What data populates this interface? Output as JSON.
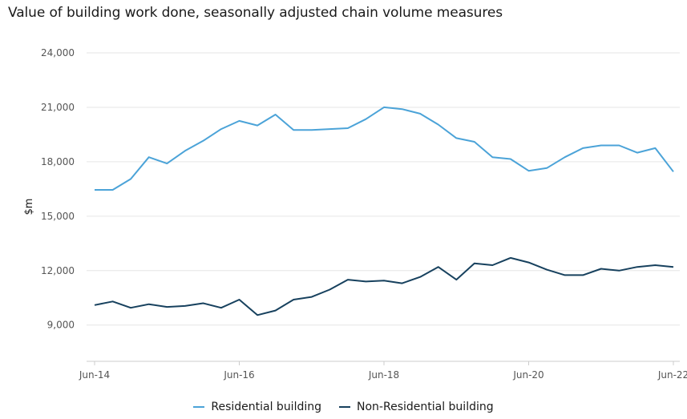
{
  "chart_data": {
    "type": "line",
    "title": "Value of building work done, seasonally adjusted chain volume measures",
    "ylabel": "$m",
    "xlabel": "",
    "ylim": [
      7000,
      24000
    ],
    "yticks": [
      9000,
      12000,
      15000,
      18000,
      21000,
      24000
    ],
    "ytick_labels": [
      "9,000",
      "12,000",
      "15,000",
      "18,000",
      "21,000",
      "24,000"
    ],
    "x": [
      "Jun-14",
      "Sep-14",
      "Dec-14",
      "Mar-15",
      "Jun-15",
      "Sep-15",
      "Dec-15",
      "Mar-16",
      "Jun-16",
      "Sep-16",
      "Dec-16",
      "Mar-17",
      "Jun-17",
      "Sep-17",
      "Dec-17",
      "Mar-18",
      "Jun-18",
      "Sep-18",
      "Dec-18",
      "Mar-19",
      "Jun-19",
      "Sep-19",
      "Dec-19",
      "Mar-20",
      "Jun-20",
      "Sep-20",
      "Dec-20",
      "Mar-21",
      "Jun-21",
      "Sep-21",
      "Dec-21",
      "Mar-22",
      "Jun-22"
    ],
    "xtick_labels": [
      "Jun-14",
      "Jun-16",
      "Jun-18",
      "Jun-20",
      "Jun-22"
    ],
    "series": [
      {
        "name": "Residential building",
        "color": "#4ba3d8",
        "values": [
          16450,
          16450,
          17050,
          18250,
          17900,
          18600,
          19150,
          19800,
          20250,
          20000,
          20600,
          19750,
          19750,
          19800,
          19850,
          20350,
          21000,
          20900,
          20650,
          20050,
          19300,
          19100,
          18250,
          18150,
          17500,
          17650,
          18250,
          18750,
          18900,
          18900,
          18500,
          18750,
          17450
        ]
      },
      {
        "name": "Non-Residential building",
        "color": "#17415e",
        "values": [
          10100,
          10300,
          9950,
          10150,
          10000,
          10050,
          10200,
          9950,
          10400,
          9550,
          9800,
          10400,
          10550,
          10950,
          11500,
          11400,
          11450,
          11300,
          11650,
          12200,
          11500,
          12400,
          12300,
          12700,
          12450,
          12050,
          11750,
          11750,
          12100,
          12000,
          12200,
          12300,
          12200
        ]
      }
    ],
    "grid": "horizontal",
    "legend_position": "bottom-center"
  }
}
